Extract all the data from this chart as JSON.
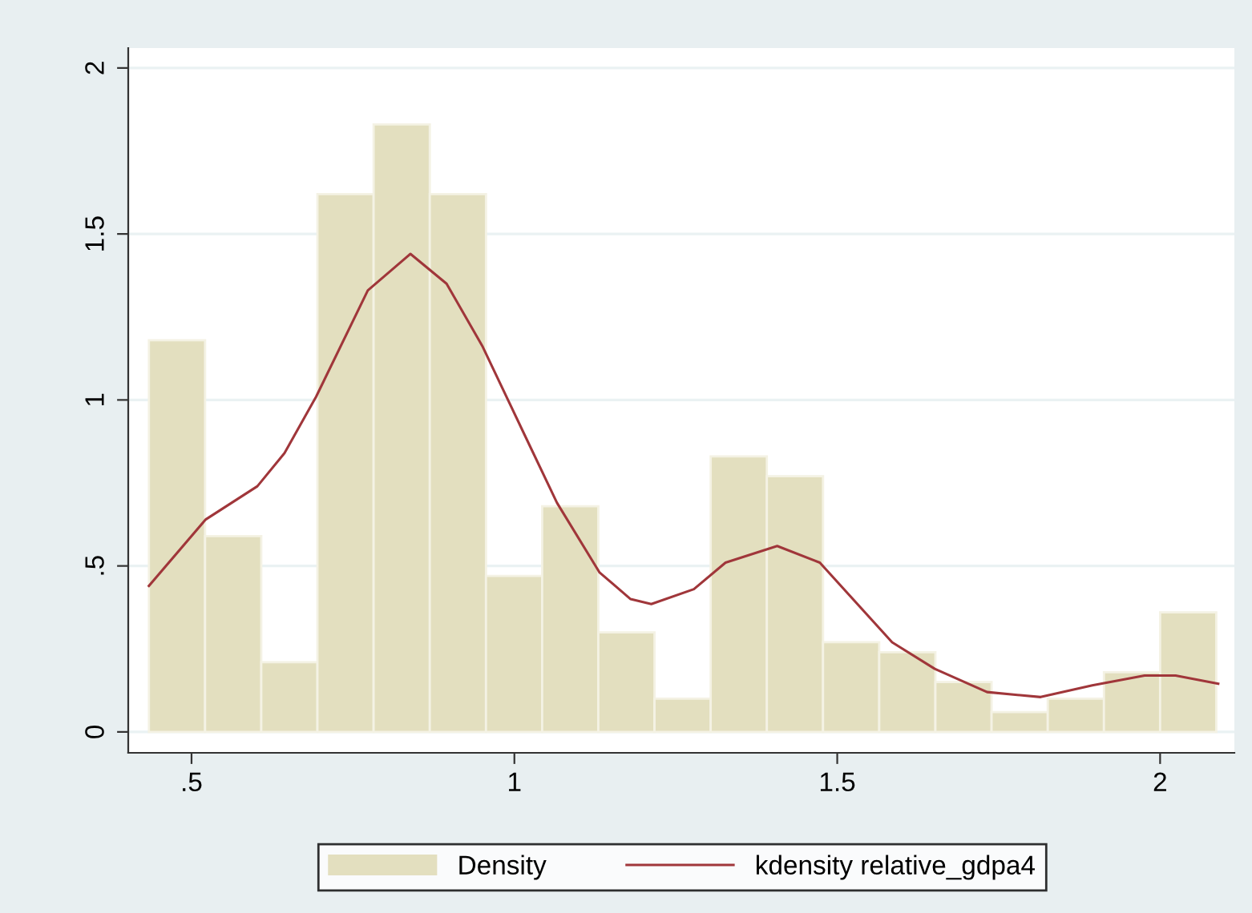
{
  "chart_data": {
    "type": "histogram",
    "series": [
      {
        "name": "Density",
        "color": "#e3dfbf",
        "bins": [
          0.434,
          0.521,
          0.608,
          0.695,
          0.782,
          0.869,
          0.956,
          1.043,
          1.13,
          1.217,
          1.304,
          1.391,
          1.478,
          1.565,
          1.652,
          1.739,
          1.826,
          1.913,
          2.0,
          2.087
        ],
        "values": [
          1.18,
          0.59,
          0.21,
          1.62,
          1.83,
          1.62,
          0.47,
          0.68,
          0.3,
          0.1,
          0.83,
          0.77,
          0.27,
          0.24,
          0.15,
          0.06,
          0.1,
          0.18,
          0.36
        ]
      },
      {
        "name": "kdensity relative_gdpa4",
        "type": "line",
        "color": "#a0363a",
        "x": [
          0.434,
          0.522,
          0.602,
          0.644,
          0.693,
          0.773,
          0.839,
          0.895,
          0.951,
          1.017,
          1.066,
          1.132,
          1.18,
          1.212,
          1.278,
          1.327,
          1.407,
          1.473,
          1.585,
          1.651,
          1.732,
          1.815,
          1.895,
          1.976,
          2.024,
          2.09
        ],
        "values": [
          0.44,
          0.64,
          0.74,
          0.84,
          1.01,
          1.33,
          1.44,
          1.35,
          1.16,
          0.89,
          0.69,
          0.48,
          0.4,
          0.385,
          0.43,
          0.51,
          0.56,
          0.51,
          0.27,
          0.19,
          0.12,
          0.105,
          0.14,
          0.17,
          0.17,
          0.145
        ]
      }
    ],
    "xlim": [
      0.402,
      2.115
    ],
    "xticks": [
      {
        "value": 0.5,
        "label": ".5"
      },
      1,
      1.5,
      2
    ],
    "ylim": [
      -0.063,
      2.06
    ],
    "yticks": [
      0,
      {
        "value": 0.5,
        "label": ".5"
      },
      1,
      1.5,
      2
    ],
    "grid": "y",
    "legend": "bottom",
    "marker": "none",
    "line_style": "solid"
  }
}
